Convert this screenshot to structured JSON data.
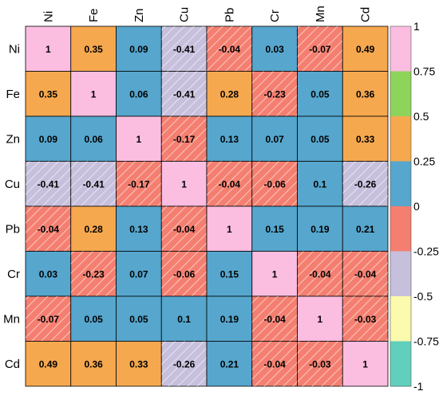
{
  "chart_data": {
    "type": "heatmap",
    "row_labels": [
      "Ni",
      "Fe",
      "Zn",
      "Cu",
      "Pb",
      "Cr",
      "Mn",
      "Cd"
    ],
    "col_labels": [
      "Ni",
      "Fe",
      "Zn",
      "Cu",
      "Pb",
      "Cr",
      "Mn",
      "Cd"
    ],
    "values": [
      [
        1,
        0.35,
        0.09,
        -0.41,
        -0.04,
        0.03,
        -0.07,
        0.49
      ],
      [
        0.35,
        1,
        0.06,
        -0.41,
        0.28,
        -0.23,
        0.05,
        0.36
      ],
      [
        0.09,
        0.06,
        1,
        -0.17,
        0.13,
        0.07,
        0.05,
        0.33
      ],
      [
        -0.41,
        -0.41,
        -0.17,
        1,
        -0.04,
        -0.06,
        0.1,
        -0.26
      ],
      [
        -0.04,
        0.28,
        0.13,
        -0.04,
        1,
        0.15,
        0.19,
        0.21
      ],
      [
        0.03,
        -0.23,
        0.07,
        -0.06,
        0.15,
        1,
        -0.04,
        -0.04
      ],
      [
        -0.07,
        0.05,
        0.05,
        0.1,
        0.19,
        -0.04,
        1,
        -0.03
      ],
      [
        0.49,
        0.36,
        0.33,
        -0.26,
        0.21,
        -0.04,
        -0.03,
        1
      ]
    ],
    "value_labels": [
      [
        "1",
        "0.35",
        "0.09",
        "-0.41",
        "-0.04",
        "0.03",
        "-0.07",
        "0.49"
      ],
      [
        "0.35",
        "1",
        "0.06",
        "-0.41",
        "0.28",
        "-0.23",
        "0.05",
        "0.36"
      ],
      [
        "0.09",
        "0.06",
        "1",
        "-0.17",
        "0.13",
        "0.07",
        "0.05",
        "0.33"
      ],
      [
        "-0.41",
        "-0.41",
        "-0.17",
        "1",
        "-0.04",
        "-0.06",
        "0.1",
        "-0.26"
      ],
      [
        "-0.04",
        "0.28",
        "0.13",
        "-0.04",
        "1",
        "0.15",
        "0.19",
        "0.21"
      ],
      [
        "0.03",
        "-0.23",
        "0.07",
        "-0.06",
        "0.15",
        "1",
        "-0.04",
        "-0.04"
      ],
      [
        "-0.07",
        "0.05",
        "0.05",
        "0.1",
        "0.19",
        "-0.04",
        "1",
        "-0.03"
      ],
      [
        "0.49",
        "0.36",
        "0.33",
        "-0.26",
        "0.21",
        "-0.04",
        "-0.03",
        "1"
      ]
    ],
    "legend": {
      "ticks": [
        "1",
        "0.75",
        "0.5",
        "0.25",
        "0",
        "-0.25",
        "-0.5",
        "-0.75",
        "-1"
      ],
      "tick_values": [
        1,
        0.75,
        0.5,
        0.25,
        0,
        -0.25,
        -0.5,
        -0.75,
        -1
      ],
      "bins": [
        {
          "from": 0.75,
          "to": 1,
          "color": "#fbbde0"
        },
        {
          "from": 0.5,
          "to": 0.75,
          "color": "#8ed35a"
        },
        {
          "from": 0.25,
          "to": 0.5,
          "color": "#f6a84f"
        },
        {
          "from": 0,
          "to": 0.25,
          "color": "#56a6cd"
        },
        {
          "from": -0.25,
          "to": 0,
          "color": "#f47f70"
        },
        {
          "from": -0.5,
          "to": -0.25,
          "color": "#c7c0dd"
        },
        {
          "from": -0.75,
          "to": -0.5,
          "color": "#fbfaad"
        },
        {
          "from": -1,
          "to": -0.75,
          "color": "#60cfbc"
        }
      ],
      "placement": "right"
    },
    "negative_hatch": true,
    "grid": true
  }
}
